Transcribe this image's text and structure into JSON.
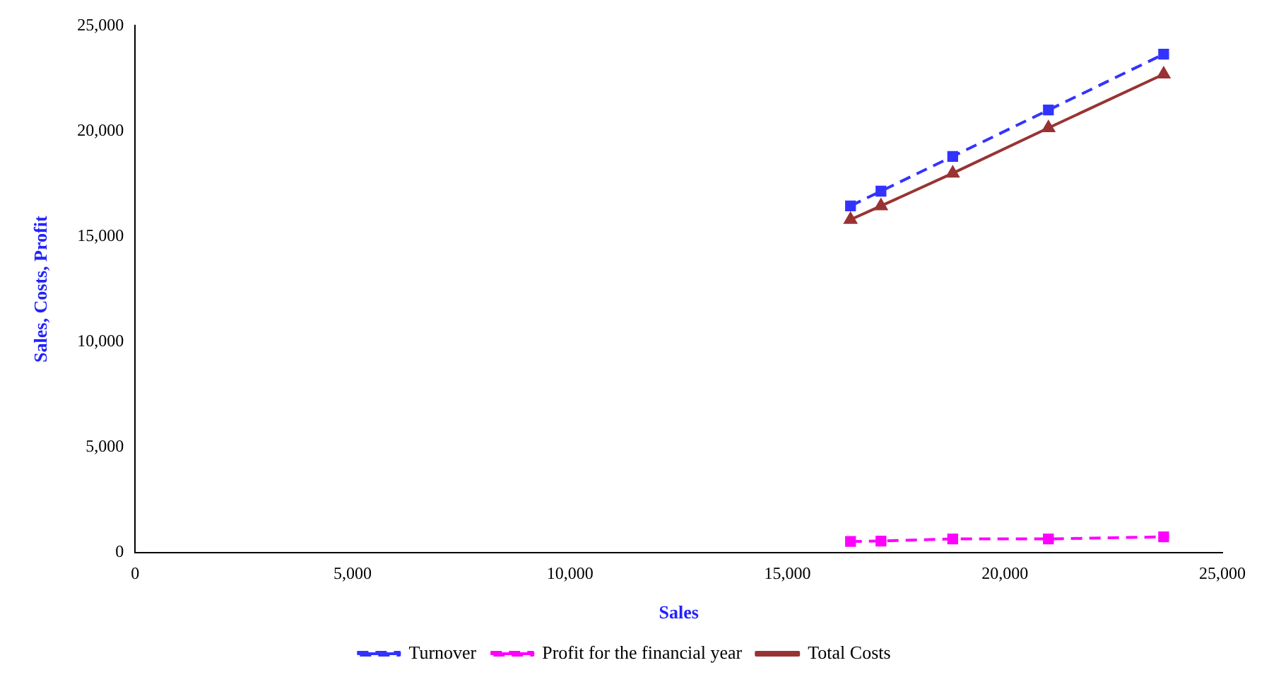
{
  "chart_data": {
    "type": "line",
    "xlabel": "Sales",
    "ylabel": "Sales, Costs, Profit",
    "x": [
      16450,
      17150,
      18800,
      21000,
      23650
    ],
    "series": [
      {
        "name": "Turnover",
        "color": "#3333ff",
        "values": [
          16450,
          17150,
          18800,
          21000,
          23650
        ],
        "marker": "square",
        "line_style": "dashed"
      },
      {
        "name": "Profit for the financial year",
        "color": "#ff00ff",
        "values": [
          530,
          550,
          650,
          650,
          750
        ],
        "marker": "square",
        "line_style": "dashed"
      },
      {
        "name": "Total Costs",
        "color": "#993333",
        "values": [
          15800,
          16450,
          18000,
          20150,
          22700
        ],
        "marker": "triangle",
        "line_style": "solid"
      }
    ],
    "xlim": [
      0,
      25000
    ],
    "ylim": [
      0,
      25000
    ],
    "xticks": [
      0,
      {
        "value": 5000,
        "label": "5,000"
      },
      {
        "value": 10000,
        "label": "10,000"
      },
      {
        "value": 15000,
        "label": "15,000"
      },
      {
        "value": 20000,
        "label": "20,000"
      },
      {
        "value": 25000,
        "label": "25,000"
      }
    ],
    "yticks": [
      0,
      {
        "value": 5000,
        "label": "5,000"
      },
      {
        "value": 10000,
        "label": "10,000"
      },
      {
        "value": 15000,
        "label": "15,000"
      },
      {
        "value": 20000,
        "label": "20,000"
      },
      {
        "value": 25000,
        "label": "25,000"
      }
    ],
    "grid": false,
    "legend": "bottom"
  }
}
